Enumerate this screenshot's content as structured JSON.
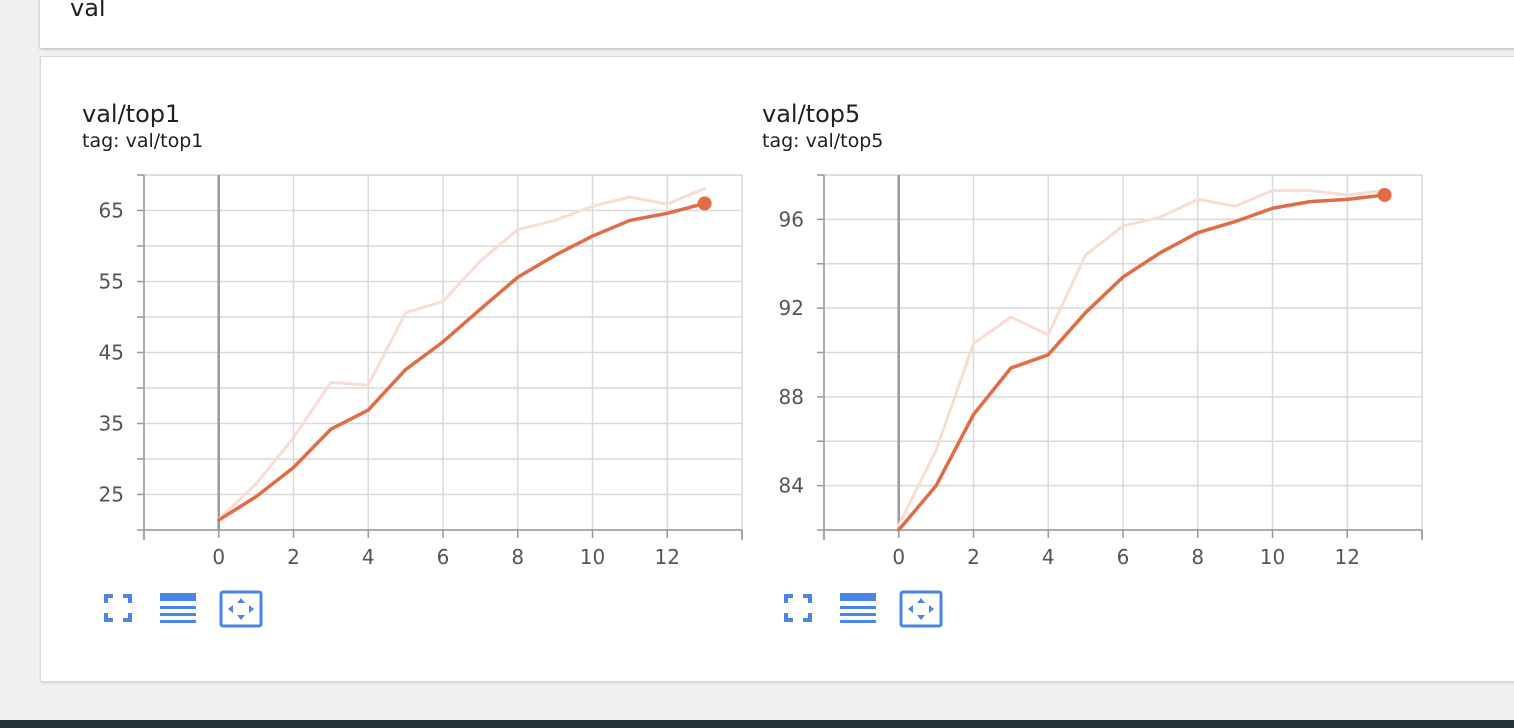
{
  "header": {
    "group_title": "val"
  },
  "colors": {
    "smoothed": "#e06d45",
    "raw": "#f8ddd2",
    "axis": "#999999",
    "grid": "#d9d9d9",
    "icon": "#4a86e8"
  },
  "toolbar_icons": [
    "fullscreen-icon",
    "data-table-icon",
    "fit-domain-icon"
  ],
  "chart_data": [
    {
      "type": "line",
      "title": "val/top1",
      "subtitle": "tag: val/top1",
      "xlim": [
        -2,
        14
      ],
      "ylim": [
        20,
        70
      ],
      "x_ticks": [
        0,
        2,
        4,
        6,
        8,
        10,
        12
      ],
      "y_ticks": [
        25,
        35,
        45,
        55,
        65
      ],
      "grid": true,
      "x": [
        0,
        1,
        2,
        3,
        4,
        5,
        6,
        7,
        8,
        9,
        10,
        11,
        12,
        13
      ],
      "series": [
        {
          "role": "raw",
          "values": [
            21.5,
            26.5,
            33.0,
            40.8,
            40.4,
            50.6,
            52.2,
            57.9,
            62.3,
            63.6,
            65.6,
            66.9,
            65.9,
            68.1
          ]
        },
        {
          "role": "smoothed",
          "values": [
            21.4,
            24.7,
            28.8,
            34.2,
            36.9,
            42.6,
            46.5,
            51.1,
            55.6,
            58.7,
            61.4,
            63.6,
            64.6,
            66.0
          ]
        }
      ]
    },
    {
      "type": "line",
      "title": "val/top5",
      "subtitle": "tag: val/top5",
      "xlim": [
        -2,
        14
      ],
      "ylim": [
        82,
        98
      ],
      "x_ticks": [
        0,
        2,
        4,
        6,
        8,
        10,
        12
      ],
      "y_ticks": [
        84,
        88,
        92,
        96
      ],
      "grid": true,
      "x": [
        0,
        1,
        2,
        3,
        4,
        5,
        6,
        7,
        8,
        9,
        10,
        11,
        12,
        13
      ],
      "series": [
        {
          "role": "raw",
          "values": [
            82.2,
            85.6,
            90.4,
            91.6,
            90.8,
            94.4,
            95.7,
            96.1,
            96.9,
            96.6,
            97.3,
            97.3,
            97.1,
            97.3
          ]
        },
        {
          "role": "smoothed",
          "values": [
            82.0,
            84.0,
            87.2,
            89.3,
            89.9,
            91.8,
            93.4,
            94.5,
            95.4,
            95.9,
            96.5,
            96.8,
            96.9,
            97.1
          ]
        }
      ]
    }
  ]
}
